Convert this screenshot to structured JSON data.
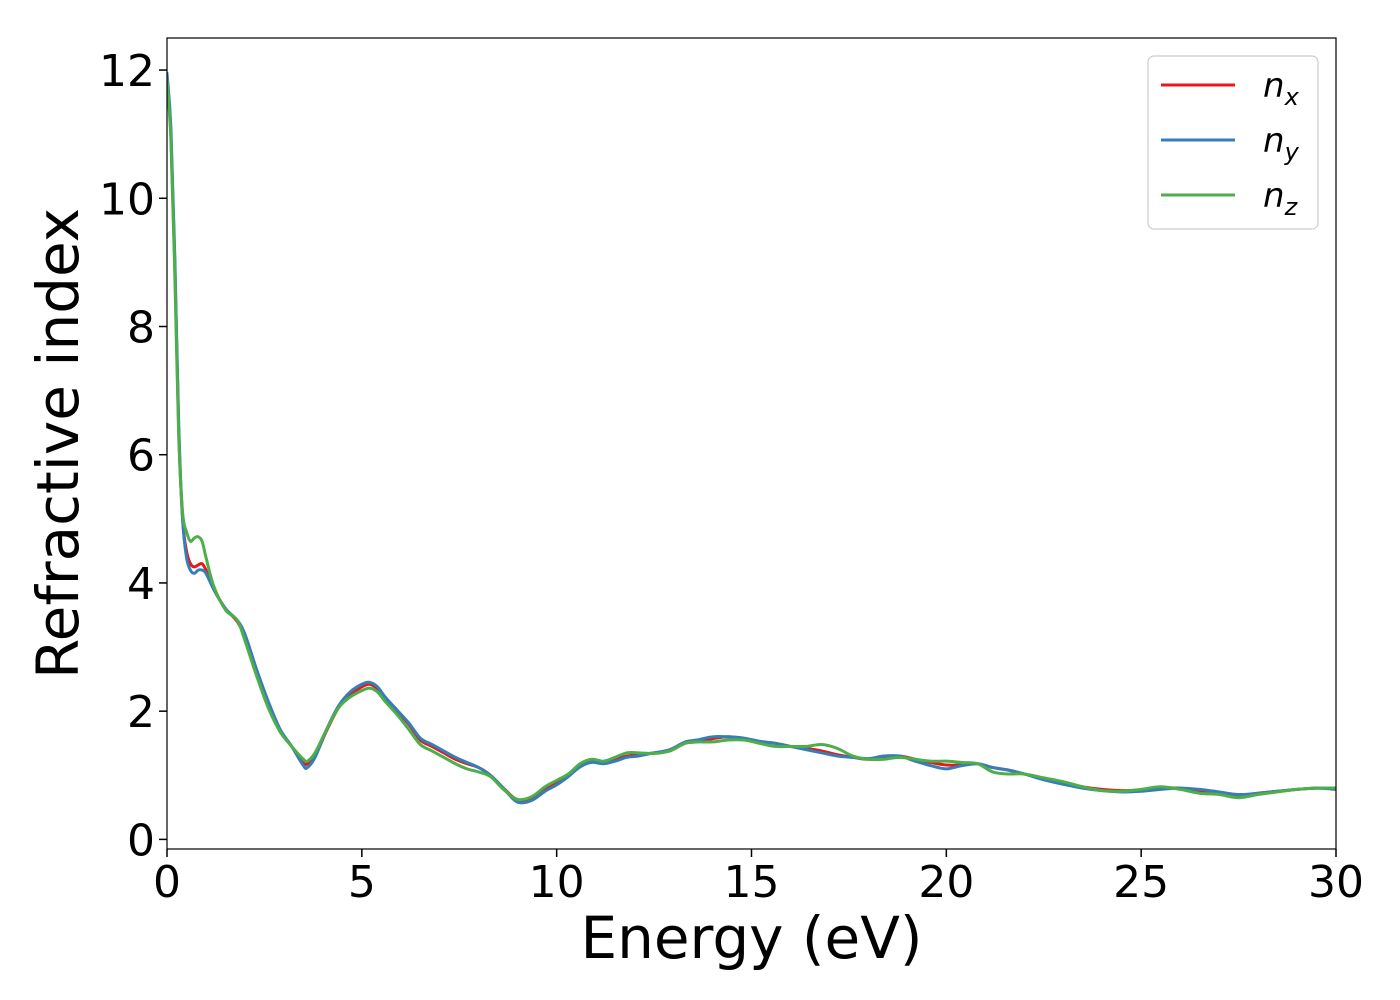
{
  "chart_data": {
    "type": "line",
    "xlabel": "Energy (eV)",
    "ylabel": "Refractive index",
    "xlim": [
      0,
      30
    ],
    "ylim": [
      -0.15,
      12.5
    ],
    "xticks": [
      0,
      5,
      10,
      15,
      20,
      25,
      30
    ],
    "yticks": [
      0,
      2,
      4,
      6,
      8,
      10,
      12
    ],
    "grid": false,
    "legend_position": "top-right",
    "series": [
      {
        "name": "n_x",
        "name_base": "n",
        "name_sub": "x",
        "color": "#e41a1c",
        "x": [
          0,
          0.1,
          0.2,
          0.3,
          0.4,
          0.5,
          0.6,
          0.7,
          0.8,
          0.9,
          1.0,
          1.2,
          1.5,
          1.8,
          2.0,
          2.3,
          2.6,
          2.9,
          3.2,
          3.5,
          3.6,
          3.8,
          4.1,
          4.4,
          4.7,
          5.0,
          5.2,
          5.4,
          5.6,
          5.9,
          6.2,
          6.5,
          6.8,
          7.1,
          7.4,
          7.7,
          8.0,
          8.3,
          8.6,
          8.9,
          9.1,
          9.4,
          9.7,
          10.0,
          10.3,
          10.6,
          10.9,
          11.2,
          11.5,
          11.8,
          12.1,
          12.5,
          12.9,
          13.3,
          13.6,
          14.0,
          14.4,
          14.8,
          15.2,
          15.6,
          16.0,
          16.4,
          16.8,
          17.2,
          17.6,
          18.0,
          18.4,
          18.8,
          19.2,
          19.6,
          20.0,
          20.4,
          20.8,
          21.2,
          21.6,
          22.0,
          22.5,
          23.0,
          23.5,
          24.0,
          24.5,
          25.0,
          25.5,
          26.0,
          26.5,
          27.0,
          27.5,
          28.0,
          28.5,
          29.0,
          29.5,
          30.0
        ],
        "y": [
          11.9,
          11.0,
          9.0,
          6.4,
          5.0,
          4.5,
          4.3,
          4.25,
          4.28,
          4.3,
          4.2,
          3.9,
          3.6,
          3.4,
          3.15,
          2.6,
          2.1,
          1.7,
          1.45,
          1.2,
          1.18,
          1.3,
          1.7,
          2.05,
          2.25,
          2.38,
          2.42,
          2.35,
          2.2,
          2.0,
          1.8,
          1.55,
          1.45,
          1.35,
          1.25,
          1.18,
          1.12,
          1.0,
          0.82,
          0.65,
          0.6,
          0.65,
          0.78,
          0.88,
          1.0,
          1.15,
          1.22,
          1.2,
          1.25,
          1.3,
          1.32,
          1.35,
          1.38,
          1.5,
          1.52,
          1.57,
          1.6,
          1.57,
          1.52,
          1.5,
          1.45,
          1.42,
          1.38,
          1.32,
          1.28,
          1.25,
          1.28,
          1.3,
          1.25,
          1.2,
          1.16,
          1.16,
          1.18,
          1.12,
          1.08,
          1.02,
          0.95,
          0.88,
          0.82,
          0.78,
          0.76,
          0.77,
          0.8,
          0.8,
          0.76,
          0.72,
          0.68,
          0.72,
          0.75,
          0.78,
          0.8,
          0.8
        ]
      },
      {
        "name": "n_y",
        "name_base": "n",
        "name_sub": "y",
        "color": "#377eb8",
        "x": [
          0,
          0.1,
          0.2,
          0.3,
          0.4,
          0.5,
          0.6,
          0.7,
          0.8,
          0.9,
          1.0,
          1.2,
          1.5,
          1.8,
          2.0,
          2.3,
          2.6,
          2.9,
          3.2,
          3.5,
          3.6,
          3.8,
          4.1,
          4.4,
          4.7,
          5.0,
          5.2,
          5.4,
          5.6,
          5.9,
          6.2,
          6.5,
          6.8,
          7.1,
          7.4,
          7.7,
          8.0,
          8.3,
          8.6,
          8.9,
          9.1,
          9.4,
          9.7,
          10.0,
          10.3,
          10.6,
          10.9,
          11.2,
          11.5,
          11.8,
          12.1,
          12.5,
          12.9,
          13.3,
          13.6,
          14.0,
          14.4,
          14.8,
          15.2,
          15.6,
          16.0,
          16.4,
          16.8,
          17.2,
          17.6,
          18.0,
          18.4,
          18.8,
          19.2,
          19.6,
          20.0,
          20.4,
          20.8,
          21.2,
          21.6,
          22.0,
          22.5,
          23.0,
          23.5,
          24.0,
          24.5,
          25.0,
          25.5,
          26.0,
          26.5,
          27.0,
          27.5,
          28.0,
          28.5,
          29.0,
          29.5,
          30.0
        ],
        "y": [
          11.95,
          11.1,
          9.1,
          6.5,
          5.0,
          4.4,
          4.2,
          4.15,
          4.2,
          4.2,
          4.15,
          3.9,
          3.6,
          3.42,
          3.2,
          2.65,
          2.15,
          1.72,
          1.45,
          1.15,
          1.12,
          1.28,
          1.72,
          2.08,
          2.3,
          2.42,
          2.45,
          2.38,
          2.22,
          2.02,
          1.82,
          1.58,
          1.48,
          1.38,
          1.28,
          1.2,
          1.12,
          1.0,
          0.82,
          0.62,
          0.57,
          0.62,
          0.75,
          0.85,
          0.98,
          1.13,
          1.2,
          1.18,
          1.22,
          1.28,
          1.3,
          1.35,
          1.4,
          1.52,
          1.55,
          1.6,
          1.6,
          1.58,
          1.53,
          1.5,
          1.45,
          1.4,
          1.35,
          1.3,
          1.28,
          1.26,
          1.3,
          1.3,
          1.22,
          1.15,
          1.1,
          1.15,
          1.18,
          1.12,
          1.08,
          1.02,
          0.93,
          0.86,
          0.8,
          0.76,
          0.74,
          0.75,
          0.78,
          0.8,
          0.78,
          0.74,
          0.7,
          0.72,
          0.75,
          0.78,
          0.8,
          0.78
        ]
      },
      {
        "name": "n_z",
        "name_base": "n",
        "name_sub": "z",
        "color": "#4daf4a",
        "x": [
          0,
          0.1,
          0.2,
          0.3,
          0.4,
          0.5,
          0.6,
          0.7,
          0.8,
          0.9,
          1.0,
          1.2,
          1.5,
          1.8,
          2.0,
          2.3,
          2.6,
          2.9,
          3.2,
          3.5,
          3.6,
          3.8,
          4.1,
          4.4,
          4.7,
          5.0,
          5.2,
          5.4,
          5.6,
          5.9,
          6.2,
          6.5,
          6.8,
          7.1,
          7.4,
          7.7,
          8.0,
          8.3,
          8.6,
          8.9,
          9.1,
          9.4,
          9.7,
          10.0,
          10.3,
          10.6,
          10.9,
          11.2,
          11.5,
          11.8,
          12.1,
          12.5,
          12.9,
          13.3,
          13.6,
          14.0,
          14.4,
          14.8,
          15.2,
          15.6,
          16.0,
          16.4,
          16.8,
          17.2,
          17.6,
          18.0,
          18.4,
          18.8,
          19.2,
          19.6,
          20.0,
          20.4,
          20.8,
          21.2,
          21.6,
          22.0,
          22.5,
          23.0,
          23.5,
          24.0,
          24.5,
          25.0,
          25.5,
          26.0,
          26.5,
          27.0,
          27.5,
          28.0,
          28.5,
          29.0,
          29.5,
          30.0
        ],
        "y": [
          11.85,
          10.9,
          8.8,
          6.3,
          5.1,
          4.8,
          4.65,
          4.7,
          4.72,
          4.65,
          4.4,
          3.95,
          3.58,
          3.42,
          3.1,
          2.55,
          2.05,
          1.68,
          1.45,
          1.25,
          1.22,
          1.35,
          1.72,
          2.05,
          2.22,
          2.32,
          2.36,
          2.3,
          2.15,
          1.95,
          1.72,
          1.48,
          1.38,
          1.28,
          1.18,
          1.1,
          1.05,
          0.98,
          0.8,
          0.65,
          0.62,
          0.68,
          0.82,
          0.92,
          1.02,
          1.18,
          1.25,
          1.22,
          1.28,
          1.35,
          1.35,
          1.34,
          1.38,
          1.5,
          1.52,
          1.52,
          1.55,
          1.55,
          1.5,
          1.45,
          1.45,
          1.45,
          1.48,
          1.42,
          1.3,
          1.25,
          1.25,
          1.28,
          1.25,
          1.22,
          1.22,
          1.2,
          1.18,
          1.05,
          1.02,
          1.02,
          0.96,
          0.9,
          0.82,
          0.76,
          0.75,
          0.78,
          0.82,
          0.78,
          0.72,
          0.7,
          0.65,
          0.7,
          0.74,
          0.78,
          0.8,
          0.8
        ]
      }
    ]
  }
}
